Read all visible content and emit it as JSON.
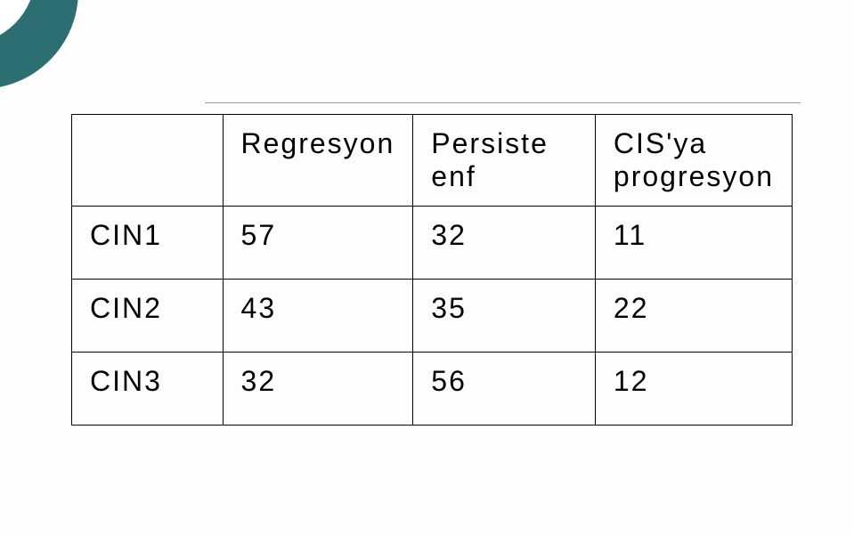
{
  "decor": {
    "circle_color": "#2d6e72",
    "bg_color": "#ffffff"
  },
  "table": {
    "type": "table",
    "border_color": "#000000",
    "font_size_pt": 24,
    "columns": [
      {
        "label": "",
        "width_pct": 22
      },
      {
        "label": "Regresyon",
        "width_pct": 26
      },
      {
        "label_line1": "Persiste",
        "label_line2": "enf",
        "width_pct": 26
      },
      {
        "label_line1": "CIS'ya",
        "label_line2": "progresyon",
        "width_pct": 26
      }
    ],
    "rows": [
      {
        "label": "CIN1",
        "c1": "57",
        "c2": "32",
        "c3": "11"
      },
      {
        "label": "CIN2",
        "c1": "43",
        "c2": "35",
        "c3": "22"
      },
      {
        "label": "CIN3",
        "c1": "32",
        "c2": "56",
        "c3": "12"
      }
    ]
  }
}
